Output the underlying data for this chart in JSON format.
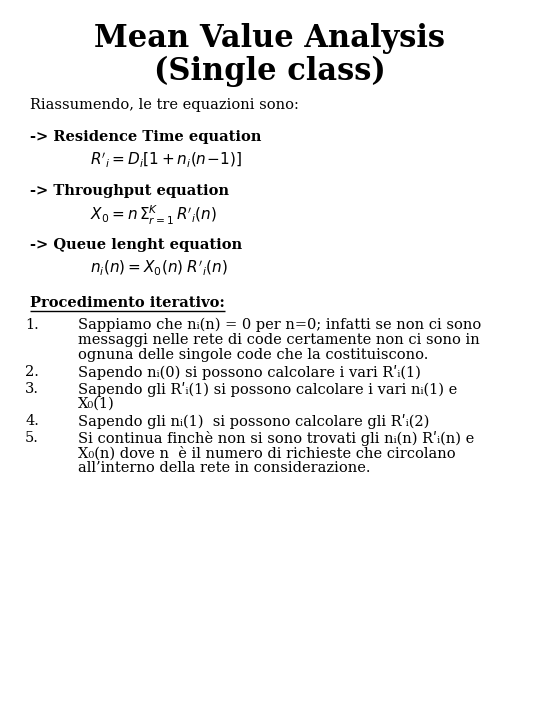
{
  "title_line1": "Mean Value Analysis",
  "title_line2": "(Single class)",
  "background_color": "#ffffff",
  "title_fontsize": 22,
  "body_fontsize": 10.5,
  "bold_fontsize": 10.5,
  "formula_fontsize": 11,
  "subtitle": "Riassumendo, le tre equazioni sono:",
  "sections": [
    {
      "header": "-> Residence Time equation",
      "formula": "$R'_i = D_i[1+n_i(n\\!-\\!1)]$"
    },
    {
      "header": "-> Throughput equation",
      "formula": "$X_0 = n \\/ \\Sigma^K_{r=1}\\, R'_i(n)$"
    },
    {
      "header": "-> Queue lenght equation",
      "formula": "$n_i(n) = X_0(n)\\; R'_i(n)$"
    }
  ],
  "proc_title": "Procedimento iterativo:",
  "proc_items": [
    [
      "Sappiamo che nᵢ(n) = 0 per n=0; infatti se non ci sono",
      "messaggi nelle rete di code certamente non ci sono in",
      "ognuna delle singole code che la costituiscono."
    ],
    [
      "Sapendo nᵢ(0) si possono calcolare i vari Rʹᵢ(1)"
    ],
    [
      "Sapendo gli Rʹᵢ(1) si possono calcolare i vari nᵢ(1) e",
      "X₀(1)"
    ],
    [
      "Sapendo gli nᵢ(1)  si possono calcolare gli Rʹᵢ(2)"
    ],
    [
      "Si continua finchè non si sono trovati gli nᵢ(n) Rʹᵢ(n) e",
      "X₀(n) dove n  è il numero di richieste che circolano",
      "all’interno della rete in considerazione."
    ]
  ]
}
